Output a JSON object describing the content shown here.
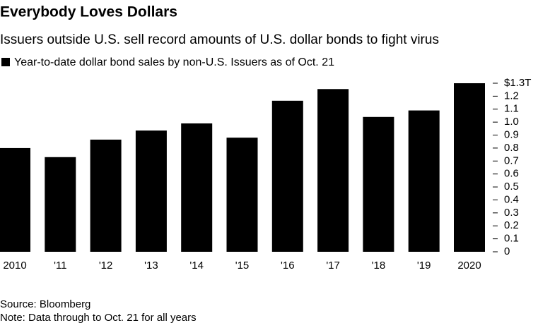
{
  "chart_data": {
    "type": "bar",
    "title": "Everybody Loves Dollars",
    "subtitle": "Issuers outside U.S. sell record amounts of U.S. dollar bonds to fight virus",
    "legend": "Year-to-date dollar bond sales by non-U.S. Issuers as of Oct. 21",
    "categories": [
      "2010",
      "'11",
      "'12",
      "'13",
      "'14",
      "'15",
      "'16",
      "'17",
      "'18",
      "'19",
      "2020"
    ],
    "values": [
      0.8,
      0.73,
      0.865,
      0.935,
      0.99,
      0.88,
      1.165,
      1.255,
      1.04,
      1.09,
      1.3
    ],
    "color": "#000000",
    "ylim": [
      0,
      1.3
    ],
    "yticks": [
      0,
      0.1,
      0.2,
      0.3,
      0.4,
      0.5,
      0.6,
      0.7,
      0.8,
      0.9,
      {
        "value": 1,
        "label": "1.0"
      },
      1.1,
      1.2,
      {
        "value": 1.3,
        "label": "$1.3T"
      }
    ],
    "source": "Source: Bloomberg",
    "note": "Note: Data through to Oct. 21 for all years"
  }
}
